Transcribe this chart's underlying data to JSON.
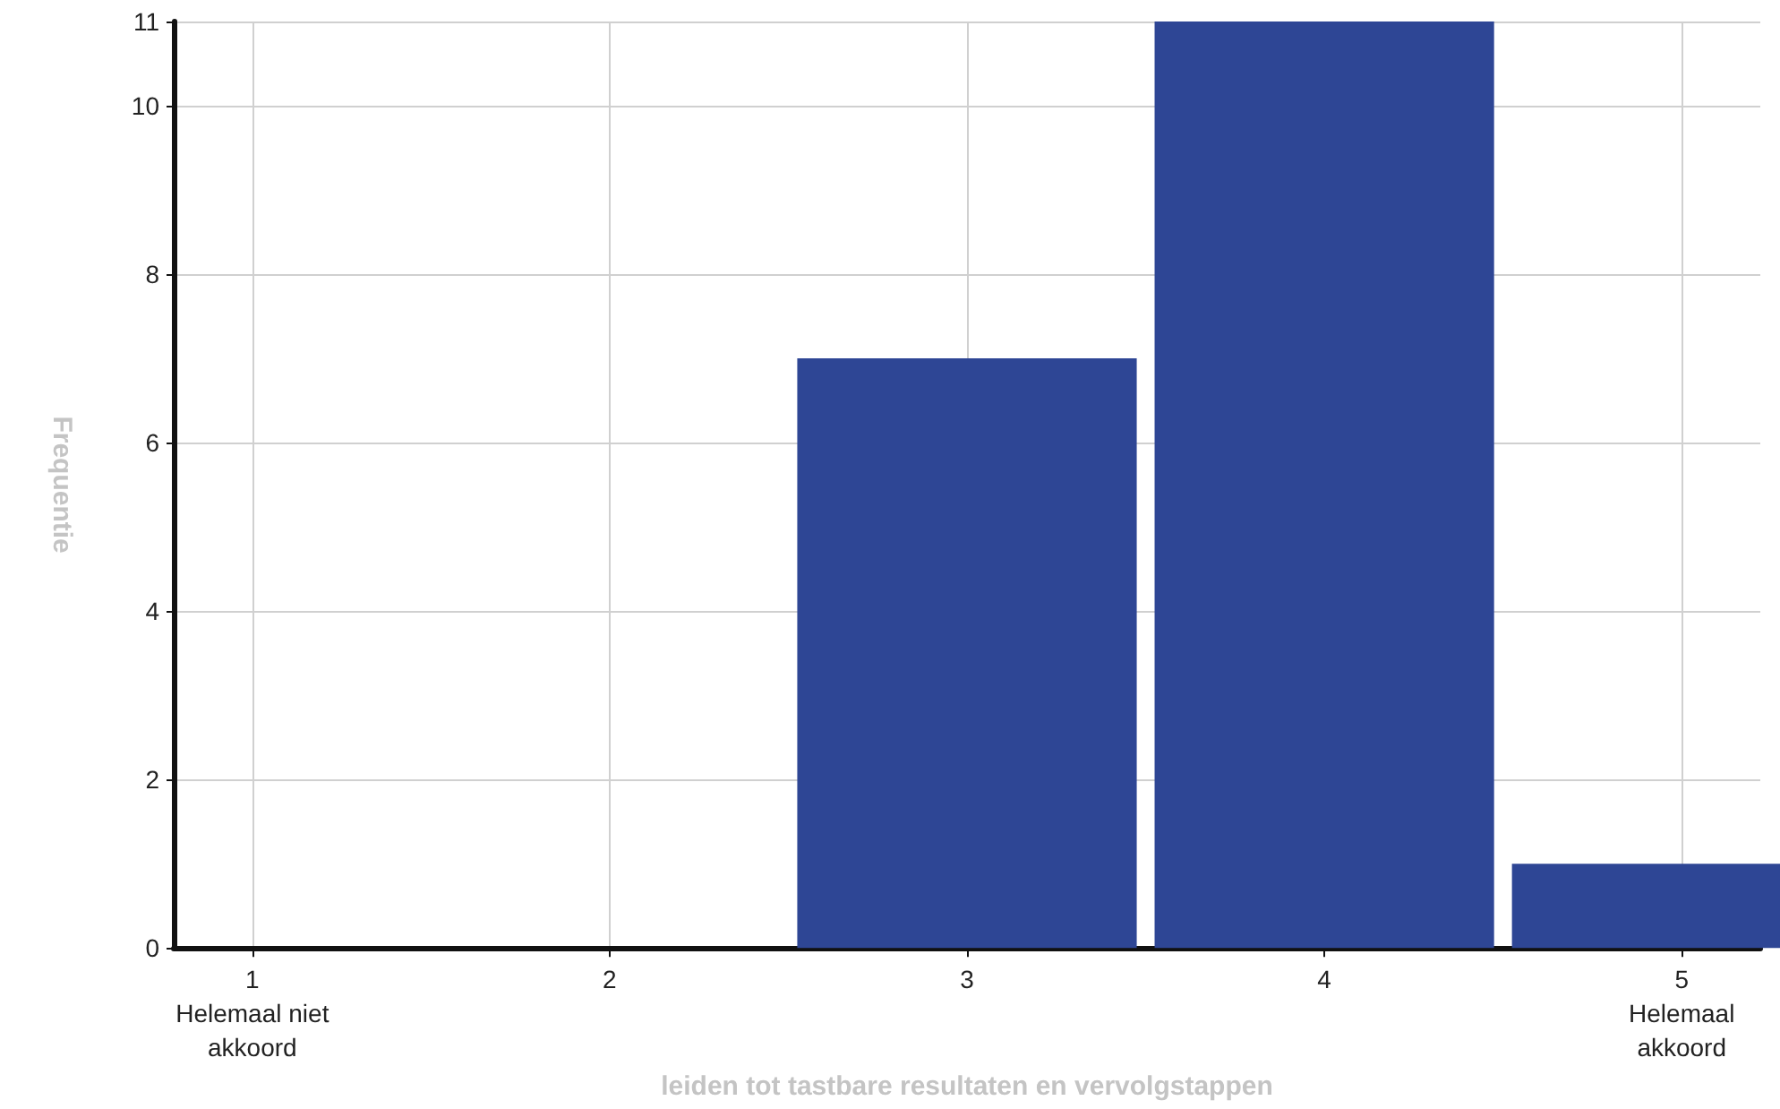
{
  "chart_data": {
    "type": "bar",
    "xlabel": "leiden tot tastbare resultaten en vervolgstappen",
    "ylabel": "Frequentie",
    "x": [
      1,
      2,
      3,
      4,
      5
    ],
    "values": [
      0,
      0,
      7,
      11,
      1
    ],
    "color": "#2e4695",
    "xlim": [
      0.78,
      5.22
    ],
    "xticks": [
      {
        "value": 1,
        "label": "1\nHelemaal niet\nakkoord"
      },
      2,
      3,
      4,
      {
        "value": 5,
        "label": "5\nHelemaal\nakkoord"
      }
    ],
    "ylim": [
      0,
      11
    ],
    "yticks": [
      0,
      2,
      4,
      6,
      8,
      10,
      11
    ],
    "grid": true
  }
}
